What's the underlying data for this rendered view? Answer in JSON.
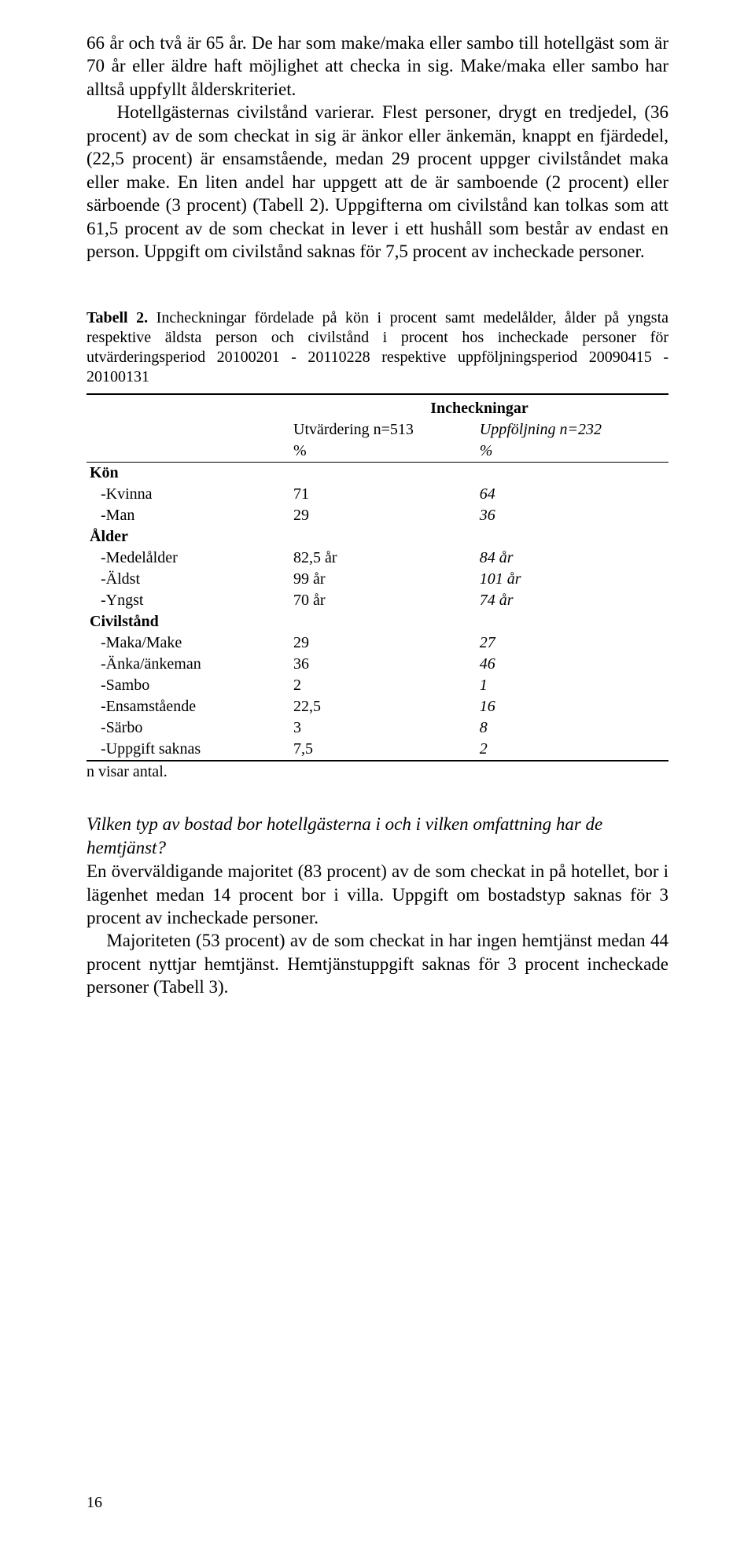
{
  "para1": "66 år och två är 65 år. De har som make/maka eller sambo till hotellgäst som är 70 år eller äldre haft möjlighet att checka in sig. Make/maka eller sambo har alltså uppfyllt ålderskriteriet.",
  "para2": "Hotellgästernas civilstånd varierar. Flest personer, drygt en tredjedel, (36 procent) av de som checkat in sig är änkor eller änkemän, knappt en fjärdedel, (22,5 procent) är ensamstående, medan 29 procent uppger civilståndet maka eller make. En liten andel har uppgett att de är samboende (2 procent) eller särboende (3 procent) (Tabell 2). Uppgifterna om civilstånd kan tolkas som att 61,5 procent av de som checkat in lever i ett hushåll som består av endast en person. Uppgift om civilstånd saknas för 7,5 procent av incheckade personer.",
  "table_caption_bold": "Tabell 2.",
  "table_caption_rest": " Incheckningar fördelade på kön i procent samt medelålder, ålder på yngsta respektive äldsta person och civilstånd i procent hos incheckade personer för utvärderingsperiod 20100201 - 20110228 respektive uppföljningsperiod 20090415 - 20100131",
  "header_center": "Incheckningar",
  "header_colA_line1": "Utvärdering n=513",
  "header_colA_line2": "%",
  "header_colB_line1": "Uppföljning n=232",
  "header_colB_line2": "%",
  "groups": {
    "kon": {
      "label": "Kön",
      "rows": [
        {
          "label": "-Kvinna",
          "a": "71",
          "b": "64"
        },
        {
          "label": "-Man",
          "a": "29",
          "b": "36"
        }
      ]
    },
    "alder": {
      "label": "Ålder",
      "rows": [
        {
          "label": "-Medelålder",
          "a": "82,5 år",
          "b": "84 år"
        },
        {
          "label": "-Äldst",
          "a": "99 år",
          "b": "101 år"
        },
        {
          "label": "-Yngst",
          "a": "70 år",
          "b": "74 år"
        }
      ]
    },
    "civil": {
      "label": "Civilstånd",
      "rows": [
        {
          "label": "-Maka/Make",
          "a": "29",
          "b": "27"
        },
        {
          "label": "-Änka/änkeman",
          "a": "36",
          "b": "46"
        },
        {
          "label": "-Sambo",
          "a": "2",
          "b": "1"
        },
        {
          "label": "-Ensamstående",
          "a": "22,5",
          "b": "16"
        },
        {
          "label": "-Särbo",
          "a": "3",
          "b": "8"
        },
        {
          "label": "-Uppgift saknas",
          "a": "7,5",
          "b": "2"
        }
      ]
    }
  },
  "table_note": "n visar antal.",
  "section_title": "Vilken typ av bostad bor hotellgästerna i och i vilken omfattning har de hemtjänst?",
  "para3": "En överväldigande majoritet (83 procent) av de som checkat in på hotellet, bor i lägenhet medan 14 procent bor i villa. Uppgift om bostadstyp saknas för 3 procent av incheckade personer.",
  "para4_indent": "    Majoriteten (53 procent) av de som checkat in har ingen hemtjänst medan 44 procent nyttjar hemtjänst. Hemtjänstuppgift saknas för 3 procent incheckade personer (Tabell 3).",
  "page_number": "16"
}
